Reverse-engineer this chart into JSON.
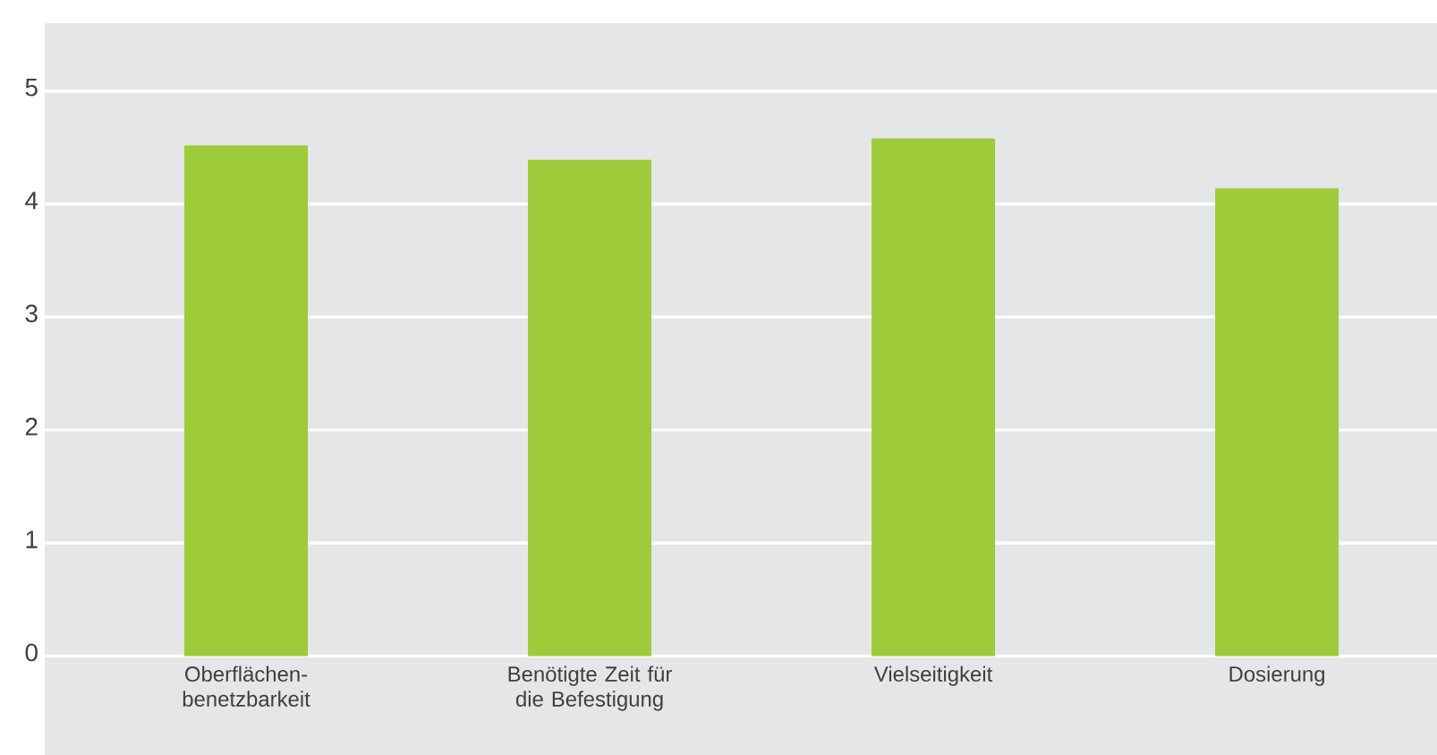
{
  "chart_data": {
    "type": "bar",
    "categories": [
      "Oberflächen-benetzbarkeit",
      "Benötigte Zeit für die Befestigung",
      "Vielseitigkeit",
      "Dosierung"
    ],
    "values": [
      4.52,
      4.39,
      4.58,
      4.14
    ],
    "color": "#9ecb3a",
    "ylim": [
      0,
      5.6
    ],
    "yticks": [
      0,
      1,
      2,
      3,
      4,
      5
    ],
    "grid": "y"
  }
}
